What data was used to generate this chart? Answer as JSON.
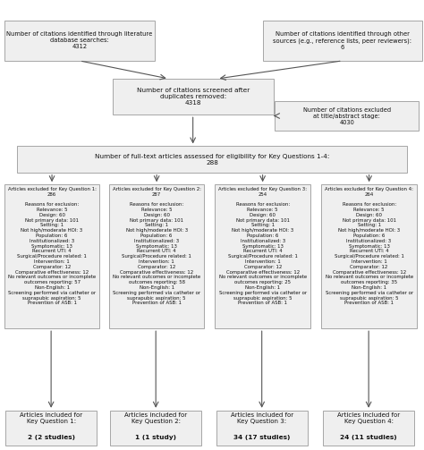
{
  "box_face": "#efefef",
  "box_edge": "#999999",
  "text_color": "#111111",
  "lw": 0.6,
  "top_box1": "Number of citations identified through literature\ndatabase searches:\n4312",
  "top_box2": "Number of citations identified through other\nsources (e.g., reference lists, peer reviewers):\n6",
  "screened_box": "Number of citations screened after\nduplicates removed:\n4318",
  "excluded_ts": "Number of citations excluded\nat title/abstract stage:\n4030",
  "fulltext_box": "Number of full-text articles assessed for eligibility for Key Questions 1-4:\n288",
  "exc_titles": [
    "Articles excluded for Key Question 1:\n286",
    "Articles excluded for Key Question 2:\n287",
    "Articles excluded for Key Question 3:\n254",
    "Articles excluded for Key Question 4:\n264"
  ],
  "exc_body": "Reasons for exclusion:\nRelevance: 5\nDesign: 60\nNot primary data: 101\nSetting: 1\nNot high/moderate HOI: 3\nPopulation: 6\nInstitutionalized: 3\nSymptomatic: 13\nRecurrent UTI: 4\nSurgical/Procedure related: 1\nIntervention: 1\nComparator: 12\nComparative effectiveness: 12\nNo relevant outcomes or incomplete\noutcomes reporting: ",
  "exc_outcomes": [
    "57",
    "58",
    "25",
    "35"
  ],
  "exc_tail": "\nNon-English: 1\nScreening performed via catheter or\nsuprapubic aspiration: 5\nPrevention of ASB: 1",
  "inc_top": [
    "Articles included for\nKey Question 1:",
    "Articles included for\nKey Question 2:",
    "Articles included for\nKey Question 3:",
    "Articles included for\nKey Question 4:"
  ],
  "inc_bold": [
    "2 (2 studies)",
    "1 (1 study)",
    "34 (17 studies)",
    "24 (11 studies)"
  ]
}
